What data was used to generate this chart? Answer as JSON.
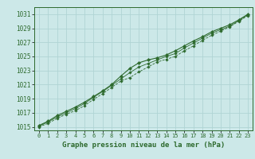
{
  "bg_color": "#cce8e8",
  "grid_color": "#b0d4d4",
  "line_color": "#2d6a2d",
  "marker_color": "#2d6a2d",
  "xlabel": "Graphe pression niveau de la mer (hPa)",
  "xlabel_fontsize": 6.5,
  "xtick_fontsize": 5.0,
  "ytick_fontsize": 5.5,
  "xlim": [
    -0.5,
    23.5
  ],
  "ylim": [
    1014.5,
    1032.0
  ],
  "yticks": [
    1015,
    1017,
    1019,
    1021,
    1023,
    1025,
    1027,
    1029,
    1031
  ],
  "xticks": [
    0,
    1,
    2,
    3,
    4,
    5,
    6,
    7,
    8,
    9,
    10,
    11,
    12,
    13,
    14,
    15,
    16,
    17,
    18,
    19,
    20,
    21,
    22,
    23
  ],
  "line1_x": [
    0,
    1,
    2,
    3,
    4,
    5,
    6,
    7,
    8,
    9,
    10,
    11,
    12,
    13,
    14,
    15,
    16,
    17,
    18,
    19,
    20,
    21,
    22,
    23
  ],
  "line1_y": [
    1015.2,
    1015.8,
    1016.6,
    1017.2,
    1017.8,
    1018.5,
    1019.3,
    1020.1,
    1021.0,
    1022.2,
    1023.3,
    1024.1,
    1024.5,
    1024.8,
    1025.2,
    1025.8,
    1026.5,
    1027.2,
    1027.8,
    1028.5,
    1029.0,
    1029.5,
    1030.2,
    1031.0
  ],
  "line2_x": [
    0,
    1,
    2,
    3,
    4,
    5,
    6,
    7,
    8,
    9,
    10,
    11,
    12,
    13,
    14,
    15,
    16,
    17,
    18,
    19,
    20,
    21,
    22,
    23
  ],
  "line2_y": [
    1015.0,
    1015.5,
    1016.2,
    1016.8,
    1017.3,
    1018.0,
    1018.9,
    1019.7,
    1020.6,
    1021.5,
    1022.0,
    1022.8,
    1023.5,
    1024.2,
    1024.6,
    1025.0,
    1025.8,
    1026.5,
    1027.3,
    1028.0,
    1028.6,
    1029.2,
    1030.0,
    1030.8
  ],
  "line3_x": [
    0,
    1,
    2,
    3,
    4,
    5,
    6,
    7,
    8,
    9,
    10,
    11,
    12,
    13,
    14,
    15,
    16,
    17,
    18,
    19,
    20,
    21,
    22,
    23
  ],
  "line3_y": [
    1015.1,
    1015.7,
    1016.4,
    1017.0,
    1017.6,
    1018.3,
    1019.2,
    1020.0,
    1020.9,
    1021.8,
    1022.7,
    1023.5,
    1024.0,
    1024.5,
    1025.0,
    1025.4,
    1026.2,
    1026.9,
    1027.6,
    1028.3,
    1028.8,
    1029.3,
    1030.1,
    1030.9
  ]
}
